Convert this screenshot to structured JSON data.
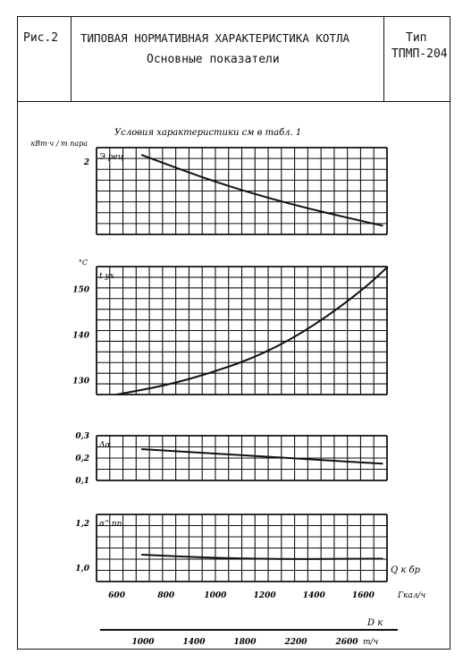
{
  "header": {
    "fig_label": "Рис.2",
    "title_line1": "ТИПОВАЯ НОРМАТИВНАЯ ХАРАКТЕРИСТИКА КОТЛА",
    "title_line2": "Основные показатели",
    "type_label": "Тип",
    "type_value": "ТПМП-204"
  },
  "note": "Условия характеристики см в табл. 1",
  "chart_data": [
    {
      "type": "line",
      "series_label": "Э рец",
      "y_unit": "кВт·ч / т пара",
      "y_ticks": [
        {
          "label": "2",
          "value": 2.0
        }
      ],
      "ylim": [
        1.0,
        2.2
      ],
      "x": [
        700,
        1000,
        1300,
        1600,
        1680
      ],
      "values": [
        2.1,
        1.72,
        1.42,
        1.18,
        1.12
      ]
    },
    {
      "type": "line",
      "series_label": "t ух",
      "y_unit": "°C",
      "y_ticks": [
        {
          "label": "150",
          "value": 150
        },
        {
          "label": "140",
          "value": 140
        },
        {
          "label": "130",
          "value": 130
        }
      ],
      "ylim": [
        127,
        155
      ],
      "x": [
        600,
        800,
        1000,
        1200,
        1400,
        1600,
        1700
      ],
      "values": [
        127.0,
        129.0,
        132.0,
        136.0,
        142.0,
        150.0,
        155.0
      ]
    },
    {
      "type": "line",
      "series_label": "Δα",
      "y_ticks": [
        {
          "label": "0,3",
          "value": 0.3
        },
        {
          "label": "0,2",
          "value": 0.2
        },
        {
          "label": "0,1",
          "value": 0.1
        }
      ],
      "ylim": [
        0.1,
        0.3
      ],
      "x": [
        700,
        1000,
        1300,
        1600,
        1680
      ],
      "values": [
        0.24,
        0.22,
        0.2,
        0.18,
        0.175
      ]
    },
    {
      "type": "line",
      "series_label": "α'' пп",
      "y_ticks": [
        {
          "label": "1,2",
          "value": 1.2
        },
        {
          "label": "1,0",
          "value": 1.0
        }
      ],
      "ylim": [
        0.94,
        1.24
      ],
      "x": [
        700,
        1000,
        1300,
        1600,
        1680
      ],
      "values": [
        1.06,
        1.045,
        1.04,
        1.042,
        1.042
      ]
    }
  ],
  "x_axis": {
    "label": "Q к бр",
    "ticks": [
      "600",
      "800",
      "1000",
      "1200",
      "1400",
      "1600"
    ],
    "unit": "Гкал/ч"
  },
  "dk_axis": {
    "label": "D к",
    "ticks": [
      "1000",
      "1400",
      "1800",
      "2200",
      "2600"
    ],
    "unit": "т/ч"
  }
}
